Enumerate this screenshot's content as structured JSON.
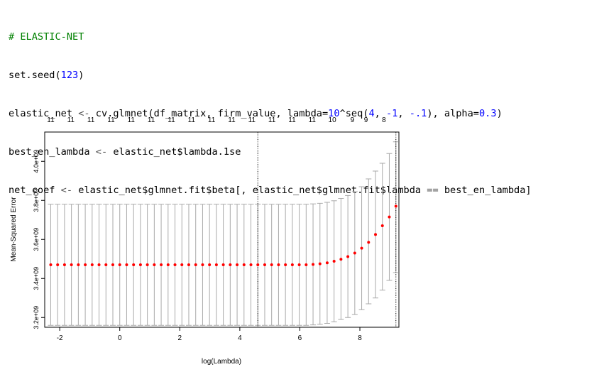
{
  "code": {
    "comment": "# ELASTIC-NET",
    "line2": {
      "fn": "set.seed(",
      "num": "123",
      "end": ")"
    },
    "line3": {
      "p1": "elastic_net ",
      "arrow": "<-",
      "p2": " cv.glmnet(df_matrix, firm_value, lambda=",
      "n1": "10",
      "p3": "^seq(",
      "n2": "4",
      "p4": ", ",
      "n3": "-1",
      "p5": ", ",
      "n4": "-.1",
      "p6": "), alpha=",
      "n5": "0.3",
      "p7": ")"
    },
    "line4": {
      "p1": "best_en_lambda ",
      "arrow": "<-",
      "p2": " elastic_net$lambda.1se"
    },
    "line5": {
      "p1": "net_coef ",
      "arrow": "<-",
      "p2": " elastic_net$glmnet.fit$beta[, elastic_net$glmnet.fit$lambda ",
      "eq": "==",
      "p3": " best_en_lambda]"
    }
  },
  "colors": {
    "comment": "#008000",
    "number": "#0000ff",
    "points": "#ff0000",
    "errorbar": "#a9a9a9"
  },
  "chart_data": {
    "type": "scatter",
    "xlabel": "log(Lambda)",
    "ylabel": "Mean-Squared Error",
    "xlim": [
      -2.5,
      9.3
    ],
    "ylim": [
      3150000000.0,
      4150000000.0
    ],
    "x_ticks": [
      "-2",
      "0",
      "2",
      "4",
      "6",
      "8"
    ],
    "x_tick_values": [
      -2,
      0,
      2,
      4,
      6,
      8
    ],
    "y_ticks": [
      "3.2e+09",
      "3.4e+09",
      "3.6e+09",
      "3.8e+09",
      "4.0e+09"
    ],
    "y_tick_values": [
      3200000000.0,
      3400000000.0,
      3600000000.0,
      3800000000.0,
      4000000000.0
    ],
    "top_labels": [
      "11",
      "11",
      "11",
      "11",
      "11",
      "11",
      "11",
      "11",
      "11",
      "11",
      "11",
      "11",
      "11",
      "11",
      "10",
      "9",
      "9",
      "8"
    ],
    "top_label_x": [
      -2.3,
      -1.63,
      -0.96,
      -0.29,
      0.38,
      1.05,
      1.72,
      2.39,
      3.06,
      3.73,
      4.4,
      5.07,
      5.74,
      6.41,
      7.08,
      7.75,
      8.2,
      8.8
    ],
    "vlines": [
      4.6,
      9.2
    ],
    "series": [
      {
        "x": [
          -2.3,
          -2.07,
          -1.84,
          -1.61,
          -1.38,
          -1.15,
          -0.92,
          -0.69,
          -0.46,
          -0.23,
          0.0,
          0.23,
          0.46,
          0.69,
          0.92,
          1.15,
          1.38,
          1.61,
          1.84,
          2.07,
          2.3,
          2.53,
          2.76,
          2.99,
          3.22,
          3.45,
          3.68,
          3.91,
          4.14,
          4.37,
          4.6,
          4.83,
          5.06,
          5.29,
          5.52,
          5.75,
          5.98,
          6.21,
          6.44,
          6.67,
          6.91,
          7.14,
          7.37,
          7.6,
          7.83,
          8.06,
          8.29,
          8.52,
          8.75,
          8.98,
          9.2
        ],
        "y": [
          3470000000.0,
          3470000000.0,
          3470000000.0,
          3470000000.0,
          3470000000.0,
          3470000000.0,
          3470000000.0,
          3470000000.0,
          3470000000.0,
          3470000000.0,
          3470000000.0,
          3470000000.0,
          3470000000.0,
          3470000000.0,
          3470000000.0,
          3470000000.0,
          3470000000.0,
          3470000000.0,
          3470000000.0,
          3470000000.0,
          3470000000.0,
          3470000000.0,
          3470000000.0,
          3470000000.0,
          3470000000.0,
          3470000000.0,
          3470000000.0,
          3470000000.0,
          3470000000.0,
          3470000000.0,
          3470000000.0,
          3470000000.0,
          3470000000.0,
          3470000000.0,
          3470000000.0,
          3470000000.0,
          3470000000.0,
          3470000000.0,
          3472000000.0,
          3475000000.0,
          3480000000.0,
          3488000000.0,
          3498000000.0,
          3512000000.0,
          3530000000.0,
          3555000000.0,
          3585000000.0,
          3625000000.0,
          3670000000.0,
          3715000000.0,
          3770000000.0
        ],
        "upper": [
          3780000000.0,
          3780000000.0,
          3780000000.0,
          3780000000.0,
          3780000000.0,
          3780000000.0,
          3780000000.0,
          3780000000.0,
          3780000000.0,
          3780000000.0,
          3780000000.0,
          3780000000.0,
          3780000000.0,
          3780000000.0,
          3780000000.0,
          3780000000.0,
          3780000000.0,
          3780000000.0,
          3780000000.0,
          3780000000.0,
          3780000000.0,
          3780000000.0,
          3780000000.0,
          3780000000.0,
          3780000000.0,
          3780000000.0,
          3780000000.0,
          3780000000.0,
          3780000000.0,
          3780000000.0,
          3780000000.0,
          3780000000.0,
          3780000000.0,
          3780000000.0,
          3780000000.0,
          3780000000.0,
          3780000000.0,
          3780000000.0,
          3782000000.0,
          3785000000.0,
          3790000000.0,
          3798000000.0,
          3810000000.0,
          3825000000.0,
          3845000000.0,
          3870000000.0,
          3910000000.0,
          3950000000.0,
          3990000000.0,
          4040000000.0,
          4100000000.0
        ],
        "lower": [
          3160000000.0,
          3160000000.0,
          3160000000.0,
          3160000000.0,
          3160000000.0,
          3160000000.0,
          3160000000.0,
          3160000000.0,
          3160000000.0,
          3160000000.0,
          3160000000.0,
          3160000000.0,
          3160000000.0,
          3160000000.0,
          3160000000.0,
          3160000000.0,
          3160000000.0,
          3160000000.0,
          3160000000.0,
          3160000000.0,
          3160000000.0,
          3160000000.0,
          3160000000.0,
          3160000000.0,
          3160000000.0,
          3160000000.0,
          3160000000.0,
          3160000000.0,
          3160000000.0,
          3160000000.0,
          3160000000.0,
          3160000000.0,
          3160000000.0,
          3160000000.0,
          3160000000.0,
          3160000000.0,
          3160000000.0,
          3160000000.0,
          3162000000.0,
          3165000000.0,
          3170000000.0,
          3178000000.0,
          3190000000.0,
          3200000000.0,
          3215000000.0,
          3240000000.0,
          3270000000.0,
          3300000000.0,
          3340000000.0,
          3390000000.0,
          3430000000.0
        ]
      }
    ]
  }
}
